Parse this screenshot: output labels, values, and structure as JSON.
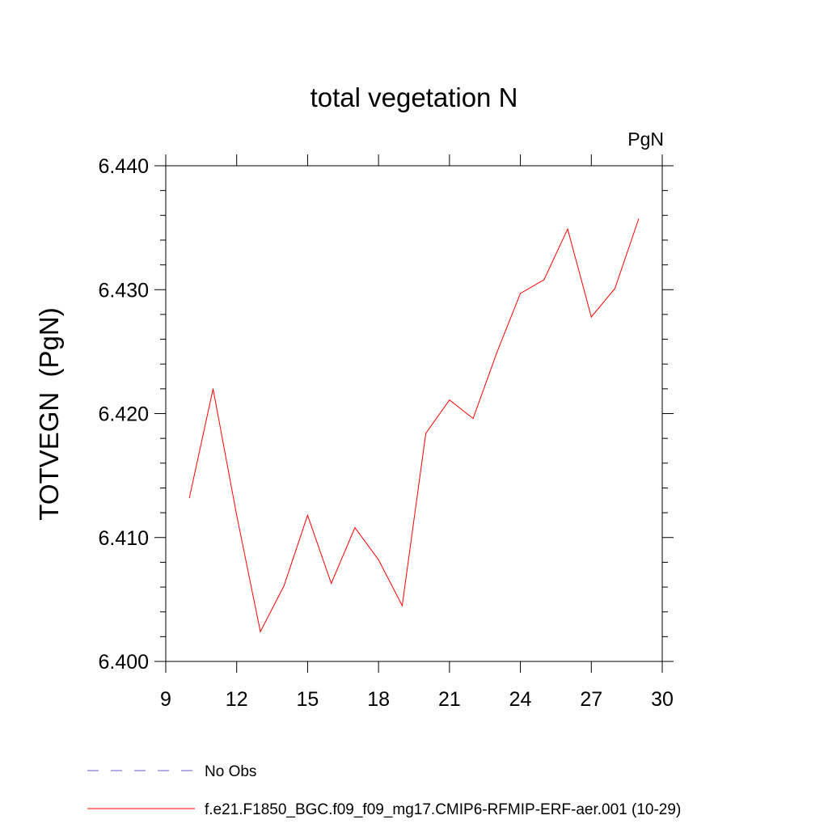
{
  "chart_data": {
    "type": "line",
    "title": "total vegetation N",
    "units_label": "PgN",
    "ylabel": "TOTVEGN  (PgN)",
    "xlabel": "",
    "xlim": [
      9,
      30
    ],
    "ylim": [
      6.4,
      6.44
    ],
    "x_ticks": [
      9,
      12,
      15,
      18,
      21,
      24,
      27,
      30
    ],
    "y_ticks": [
      "6.400",
      "6.410",
      "6.420",
      "6.430",
      "6.440"
    ],
    "y_tick_values": [
      6.4,
      6.41,
      6.42,
      6.43,
      6.44
    ],
    "grid": false,
    "legend_position": "bottom-left",
    "series": [
      {
        "name": "f.e21.F1850_BGC.f09_f09_mg17.CMIP6-RFMIP-ERF-aer.001 (10-29)",
        "color": "#ff0000",
        "x": [
          10,
          11,
          12,
          13,
          14,
          15,
          16,
          17,
          18,
          19,
          20,
          21,
          22,
          23,
          24,
          25,
          26,
          27,
          28,
          29
        ],
        "values": [
          6.4132,
          6.422,
          6.4118,
          6.4024,
          6.4061,
          6.4118,
          6.4063,
          6.4108,
          6.4082,
          6.4045,
          6.4184,
          6.4211,
          6.4196,
          6.4249,
          6.4297,
          6.4308,
          6.4349,
          6.4278,
          6.4301,
          6.4357
        ]
      }
    ],
    "legend": [
      {
        "label": "No Obs",
        "color": "#6a5acd",
        "style": "dashed"
      },
      {
        "label": "f.e21.F1850_BGC.f09_f09_mg17.CMIP6-RFMIP-ERF-aer.001 (10-29)",
        "color": "#ff0000",
        "style": "solid"
      }
    ]
  }
}
